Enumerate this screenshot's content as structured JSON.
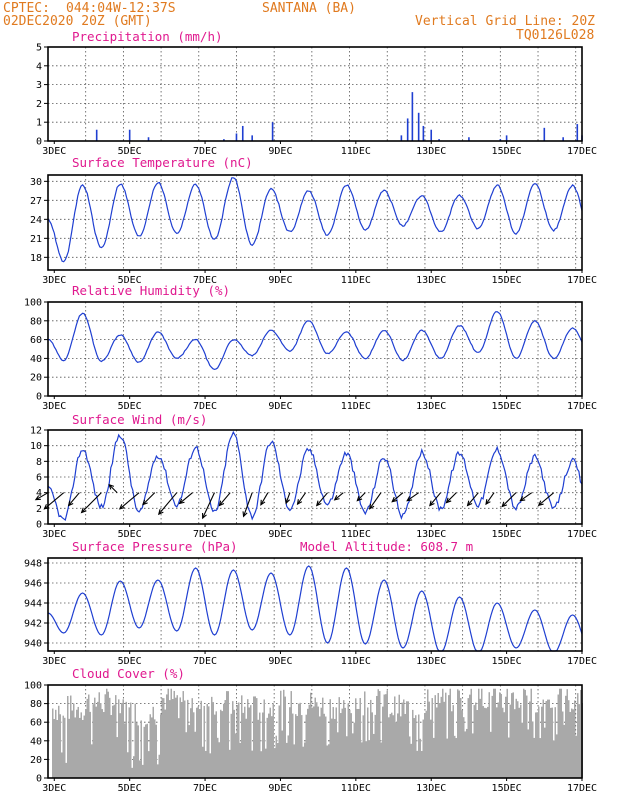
{
  "header": {
    "agency": "CPTEC:",
    "coords": "044:04W-12:37S",
    "station": "SANTANA (BA)",
    "init_time": "02DEC2020 20Z (GMT)",
    "grid_note": "Vertical Grid Line: 20Z",
    "model_code": "TQ0126L028"
  },
  "x_axis": {
    "range": [
      "2020-12-02T20:00",
      "2020-12-17T00:00"
    ],
    "tick_labels": [
      "3DEC",
      "5DEC",
      "7DEC",
      "9DEC",
      "11DEC",
      "13DEC",
      "15DEC",
      "17DEC"
    ],
    "tick_dates": [
      "2020-12-03",
      "2020-12-05",
      "2020-12-07",
      "2020-12-09",
      "2020-12-11",
      "2020-12-13",
      "2020-12-15",
      "2020-12-17"
    ],
    "grid_every_day": "20Z"
  },
  "colors": {
    "line": "#1f3fd1",
    "bars": "#1f3fd1",
    "cloud": "#a9a9a9",
    "title": "#e0198f",
    "header": "#e07a1f",
    "arrow": "#000000"
  },
  "chart_data": [
    {
      "type": "bar",
      "title": "Precipitation (mm/h)",
      "ylim": [
        0,
        5
      ],
      "yticks": [
        "0",
        "1",
        "2",
        "3",
        "4",
        "5"
      ],
      "grid": true,
      "values": [
        {
          "t": "2020-12-04T03:00",
          "v": 0.6
        },
        {
          "t": "2020-12-05T00:00",
          "v": 0.6
        },
        {
          "t": "2020-12-05T12:00",
          "v": 0.2
        },
        {
          "t": "2020-12-07T12:00",
          "v": 0.1
        },
        {
          "t": "2020-12-07T20:00",
          "v": 0.4
        },
        {
          "t": "2020-12-08T00:00",
          "v": 0.8
        },
        {
          "t": "2020-12-08T06:00",
          "v": 0.3
        },
        {
          "t": "2020-12-08T19:00",
          "v": 1.0
        },
        {
          "t": "2020-12-12T05:00",
          "v": 0.3
        },
        {
          "t": "2020-12-12T09:00",
          "v": 1.2
        },
        {
          "t": "2020-12-12T12:00",
          "v": 2.6
        },
        {
          "t": "2020-12-12T16:00",
          "v": 1.5
        },
        {
          "t": "2020-12-12T19:00",
          "v": 0.8
        },
        {
          "t": "2020-12-13T00:00",
          "v": 0.6
        },
        {
          "t": "2020-12-13T05:00",
          "v": 0.1
        },
        {
          "t": "2020-12-14T00:00",
          "v": 0.2
        },
        {
          "t": "2020-12-14T20:00",
          "v": 0.1
        },
        {
          "t": "2020-12-15T00:00",
          "v": 0.3
        },
        {
          "t": "2020-12-16T00:00",
          "v": 0.7
        },
        {
          "t": "2020-12-16T12:00",
          "v": 0.2
        },
        {
          "t": "2020-12-16T21:00",
          "v": 0.9
        },
        {
          "t": "2020-12-17T00:00",
          "v": 0.3
        }
      ]
    },
    {
      "type": "line",
      "title": "Surface Temperature (nC)",
      "ylim": [
        16,
        31
      ],
      "yticks": [
        "18",
        "21",
        "24",
        "27",
        "30"
      ],
      "grid": true,
      "daily_max": [
        29.4,
        29.6,
        29.8,
        29.5,
        30.6,
        28.8,
        28.5,
        29.4,
        28.5,
        27.7,
        27.8,
        29.4,
        29.6,
        29.3,
        28.8
      ],
      "daily_min": [
        17.3,
        19.5,
        21.3,
        21.8,
        20.8,
        20.0,
        22.0,
        21.5,
        22.4,
        23.0,
        22.0,
        22.5,
        21.8,
        22.3,
        21.4
      ],
      "start_value": 24.0,
      "end_value": 28.0
    },
    {
      "type": "line",
      "title": "Relative Humidity (%)",
      "ylim": [
        0,
        100
      ],
      "yticks": [
        "0",
        "20",
        "40",
        "60",
        "80",
        "100"
      ],
      "grid": true,
      "daily_max": [
        88,
        65,
        68,
        60,
        60,
        70,
        80,
        68,
        70,
        70,
        75,
        90,
        80,
        72,
        86
      ],
      "daily_min": [
        38,
        37,
        36,
        40,
        28,
        43,
        48,
        45,
        40,
        38,
        40,
        46,
        40,
        40,
        42
      ],
      "start_value": 60,
      "end_value": 48
    },
    {
      "type": "line",
      "title": "Surface Wind (m/s)",
      "ylim": [
        0,
        12
      ],
      "yticks": [
        "0",
        "2",
        "4",
        "6",
        "8",
        "10",
        "12"
      ],
      "grid": true,
      "daily_max": [
        9.5,
        11.4,
        8.8,
        9.8,
        11.5,
        10.5,
        9.5,
        9.0,
        8.5,
        9.2,
        9.0,
        9.5,
        8.5,
        8.0,
        9.2
      ],
      "daily_min": [
        0.5,
        2.2,
        1.5,
        2.5,
        1.5,
        1.0,
        2.0,
        2.5,
        1.5,
        1.0,
        2.0,
        2.5,
        2.0,
        2.0,
        1.5
      ],
      "start_value": 4.5,
      "end_value": 0.5,
      "vectors": [
        {
          "t": "2020-12-02T20:00",
          "dir_deg": 210,
          "speed": 5
        },
        {
          "t": "2020-12-03T06:00",
          "dir_deg": 220,
          "speed": 9
        },
        {
          "t": "2020-12-03T16:00",
          "dir_deg": 230,
          "speed": 6
        },
        {
          "t": "2020-12-04T06:00",
          "dir_deg": 225,
          "speed": 10
        },
        {
          "t": "2020-12-04T16:00",
          "dir_deg": 135,
          "speed": 4
        },
        {
          "t": "2020-12-05T06:00",
          "dir_deg": 220,
          "speed": 9
        },
        {
          "t": "2020-12-05T16:00",
          "dir_deg": 225,
          "speed": 6
        },
        {
          "t": "2020-12-06T06:00",
          "dir_deg": 230,
          "speed": 10
        },
        {
          "t": "2020-12-06T16:00",
          "dir_deg": 220,
          "speed": 6
        },
        {
          "t": "2020-12-07T06:00",
          "dir_deg": 245,
          "speed": 10
        },
        {
          "t": "2020-12-07T16:00",
          "dir_deg": 230,
          "speed": 6
        },
        {
          "t": "2020-12-08T06:00",
          "dir_deg": 250,
          "speed": 9
        },
        {
          "t": "2020-12-08T16:00",
          "dir_deg": 240,
          "speed": 5
        },
        {
          "t": "2020-12-09T06:00",
          "dir_deg": 250,
          "speed": 4
        },
        {
          "t": "2020-12-09T16:00",
          "dir_deg": 235,
          "speed": 5
        },
        {
          "t": "2020-12-10T06:00",
          "dir_deg": 230,
          "speed": 6
        },
        {
          "t": "2020-12-10T16:00",
          "dir_deg": 220,
          "speed": 4
        },
        {
          "t": "2020-12-11T06:00",
          "dir_deg": 225,
          "speed": 4
        },
        {
          "t": "2020-12-11T16:00",
          "dir_deg": 235,
          "speed": 7
        },
        {
          "t": "2020-12-12T06:00",
          "dir_deg": 220,
          "speed": 5
        },
        {
          "t": "2020-12-12T16:00",
          "dir_deg": 215,
          "speed": 5
        },
        {
          "t": "2020-12-13T06:00",
          "dir_deg": 230,
          "speed": 6
        },
        {
          "t": "2020-12-13T16:00",
          "dir_deg": 225,
          "speed": 5
        },
        {
          "t": "2020-12-14T06:00",
          "dir_deg": 230,
          "speed": 6
        },
        {
          "t": "2020-12-14T16:00",
          "dir_deg": 235,
          "speed": 5
        },
        {
          "t": "2020-12-15T06:00",
          "dir_deg": 225,
          "speed": 7
        },
        {
          "t": "2020-12-15T16:00",
          "dir_deg": 215,
          "speed": 5
        },
        {
          "t": "2020-12-16T06:00",
          "dir_deg": 220,
          "speed": 7
        }
      ]
    },
    {
      "type": "line",
      "title": "Surface Pressure (hPa)",
      "annotation": "Model Altitude: 608.7 m",
      "ylim": [
        939.2,
        948.5
      ],
      "yticks": [
        "940",
        "942",
        "944",
        "946",
        "948"
      ],
      "grid": true,
      "daily_max": [
        945.0,
        946.2,
        946.3,
        947.5,
        947.3,
        947.0,
        947.7,
        947.5,
        946.3,
        945.2,
        944.6,
        944.0,
        943.3,
        942.8,
        943.2
      ],
      "daily_min": [
        941.0,
        940.8,
        941.5,
        941.2,
        940.8,
        941.3,
        940.8,
        940.0,
        939.9,
        939.5,
        939.0,
        939.0,
        939.5,
        939.0,
        939.0
      ],
      "start_value": 943.0,
      "end_value": 940.2
    },
    {
      "type": "bar",
      "title": "Cloud Cover (%)",
      "ylim": [
        0,
        100
      ],
      "yticks": [
        "0",
        "20",
        "40",
        "60",
        "80",
        "100"
      ],
      "grid": true,
      "daily_mean": [
        75,
        82,
        70,
        85,
        80,
        75,
        80,
        78,
        82,
        75,
        85,
        88,
        85,
        83,
        90
      ],
      "daily_low": [
        15,
        35,
        10,
        40,
        25,
        20,
        30,
        25,
        35,
        25,
        40,
        45,
        40,
        35,
        45
      ]
    }
  ]
}
